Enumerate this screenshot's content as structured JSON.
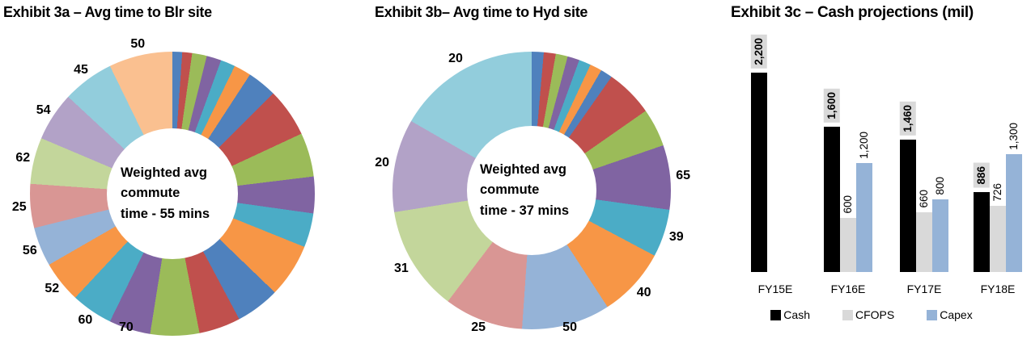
{
  "chart_data": [
    {
      "type": "pie",
      "subtype": "donut",
      "title": "Exhibit 3a – Avg time to Blr site",
      "center_label_lines": [
        "Weighted avg",
        "commute",
        "time - 55 mins"
      ],
      "center_label": "Weighted avg commute time - 55 mins",
      "weighted_avg_commute_mins": 55,
      "visible_slice_labels": [
        "50",
        "45",
        "54",
        "62",
        "25",
        "56",
        "52",
        "60",
        "70"
      ],
      "slices": [
        {
          "color": "#4F81BD",
          "share_deg": 4,
          "label": ""
        },
        {
          "color": "#C0504D",
          "share_deg": 4,
          "label": ""
        },
        {
          "color": "#9BBB59",
          "share_deg": 6,
          "label": ""
        },
        {
          "color": "#8064A2",
          "share_deg": 6,
          "label": ""
        },
        {
          "color": "#4BACC6",
          "share_deg": 6,
          "label": ""
        },
        {
          "color": "#F79646",
          "share_deg": 7,
          "label": ""
        },
        {
          "color": "#4F81BD",
          "share_deg": 12,
          "label": ""
        },
        {
          "color": "#C0504D",
          "share_deg": 20,
          "label": ""
        },
        {
          "color": "#9BBB59",
          "share_deg": 18,
          "label": ""
        },
        {
          "color": "#8064A2",
          "share_deg": 15,
          "label": ""
        },
        {
          "color": "#4BACC6",
          "share_deg": 14,
          "label": ""
        },
        {
          "color": "#F79646",
          "share_deg": 22,
          "label": ""
        },
        {
          "color": "#4F81BD",
          "share_deg": 18,
          "label": ""
        },
        {
          "color": "#C0504D",
          "share_deg": 17,
          "label": ""
        },
        {
          "color": "#9BBB59",
          "share_deg": 20,
          "label": ""
        },
        {
          "color": "#8064A2",
          "share_deg": 17,
          "label": "70"
        },
        {
          "color": "#4BACC6",
          "share_deg": 17,
          "label": "60"
        },
        {
          "color": "#F79646",
          "share_deg": 17,
          "label": "52"
        },
        {
          "color": "#95B3D7",
          "share_deg": 16,
          "label": "56"
        },
        {
          "color": "#D99694",
          "share_deg": 18,
          "label": "25"
        },
        {
          "color": "#C3D69B",
          "share_deg": 19,
          "label": "62"
        },
        {
          "color": "#B2A2C7",
          "share_deg": 20,
          "label": "54"
        },
        {
          "color": "#92CDDC",
          "share_deg": 21,
          "label": "45"
        },
        {
          "color": "#FAC090",
          "share_deg": 26,
          "label": "50"
        }
      ]
    },
    {
      "type": "pie",
      "subtype": "donut",
      "title": "Exhibit 3b– Avg time to Hyd site",
      "center_label_lines": [
        "Weighted avg",
        "commute",
        "time - 37 mins"
      ],
      "center_label": "Weighted avg commute time - 37 mins",
      "weighted_avg_commute_mins": 37,
      "visible_slice_labels": [
        "20",
        "20",
        "31",
        "25",
        "50",
        "40",
        "39",
        "65"
      ],
      "slices": [
        {
          "color": "#4F81BD",
          "share_deg": 5,
          "label": ""
        },
        {
          "color": "#C0504D",
          "share_deg": 5,
          "label": ""
        },
        {
          "color": "#9BBB59",
          "share_deg": 5,
          "label": ""
        },
        {
          "color": "#8064A2",
          "share_deg": 5,
          "label": ""
        },
        {
          "color": "#4BACC6",
          "share_deg": 5,
          "label": ""
        },
        {
          "color": "#F79646",
          "share_deg": 5,
          "label": ""
        },
        {
          "color": "#4F81BD",
          "share_deg": 5,
          "label": ""
        },
        {
          "color": "#C0504D",
          "share_deg": 20,
          "label": ""
        },
        {
          "color": "#9BBB59",
          "share_deg": 16,
          "label": ""
        },
        {
          "color": "#8064A2",
          "share_deg": 27,
          "label": "65"
        },
        {
          "color": "#4BACC6",
          "share_deg": 20,
          "label": "39"
        },
        {
          "color": "#F79646",
          "share_deg": 29,
          "label": "40"
        },
        {
          "color": "#95B3D7",
          "share_deg": 37,
          "label": "50"
        },
        {
          "color": "#D99694",
          "share_deg": 33,
          "label": "25"
        },
        {
          "color": "#C3D69B",
          "share_deg": 44,
          "label": "31"
        },
        {
          "color": "#B2A2C7",
          "share_deg": 39,
          "label": "20"
        },
        {
          "color": "#92CDDC",
          "share_deg": 60,
          "label": "20"
        }
      ]
    },
    {
      "type": "bar",
      "title": "Exhibit 3c – Cash projections (mil)",
      "categories": [
        "FY15E",
        "FY16E",
        "FY17E",
        "FY18E"
      ],
      "series": [
        {
          "name": "Cash",
          "color": "#000000",
          "values": [
            2200,
            1600,
            1460,
            886
          ],
          "value_labels": [
            "2,200",
            "1,600",
            "1,460",
            "886"
          ],
          "label_boxed": true
        },
        {
          "name": "CFOPS",
          "color": "#D9D9D9",
          "values": [
            null,
            600,
            660,
            726
          ],
          "value_labels": [
            null,
            "600",
            "660",
            "726"
          ],
          "label_boxed": false
        },
        {
          "name": "Capex",
          "color": "#95B3D7",
          "values": [
            null,
            1200,
            800,
            1300
          ],
          "value_labels": [
            null,
            "1,200",
            "800",
            "1,300"
          ],
          "label_boxed": false
        }
      ],
      "ylim": [
        0,
        2400
      ],
      "grid": false,
      "legend": [
        "Cash",
        "CFOPS",
        "Capex"
      ],
      "legend_position": "bottom"
    }
  ]
}
